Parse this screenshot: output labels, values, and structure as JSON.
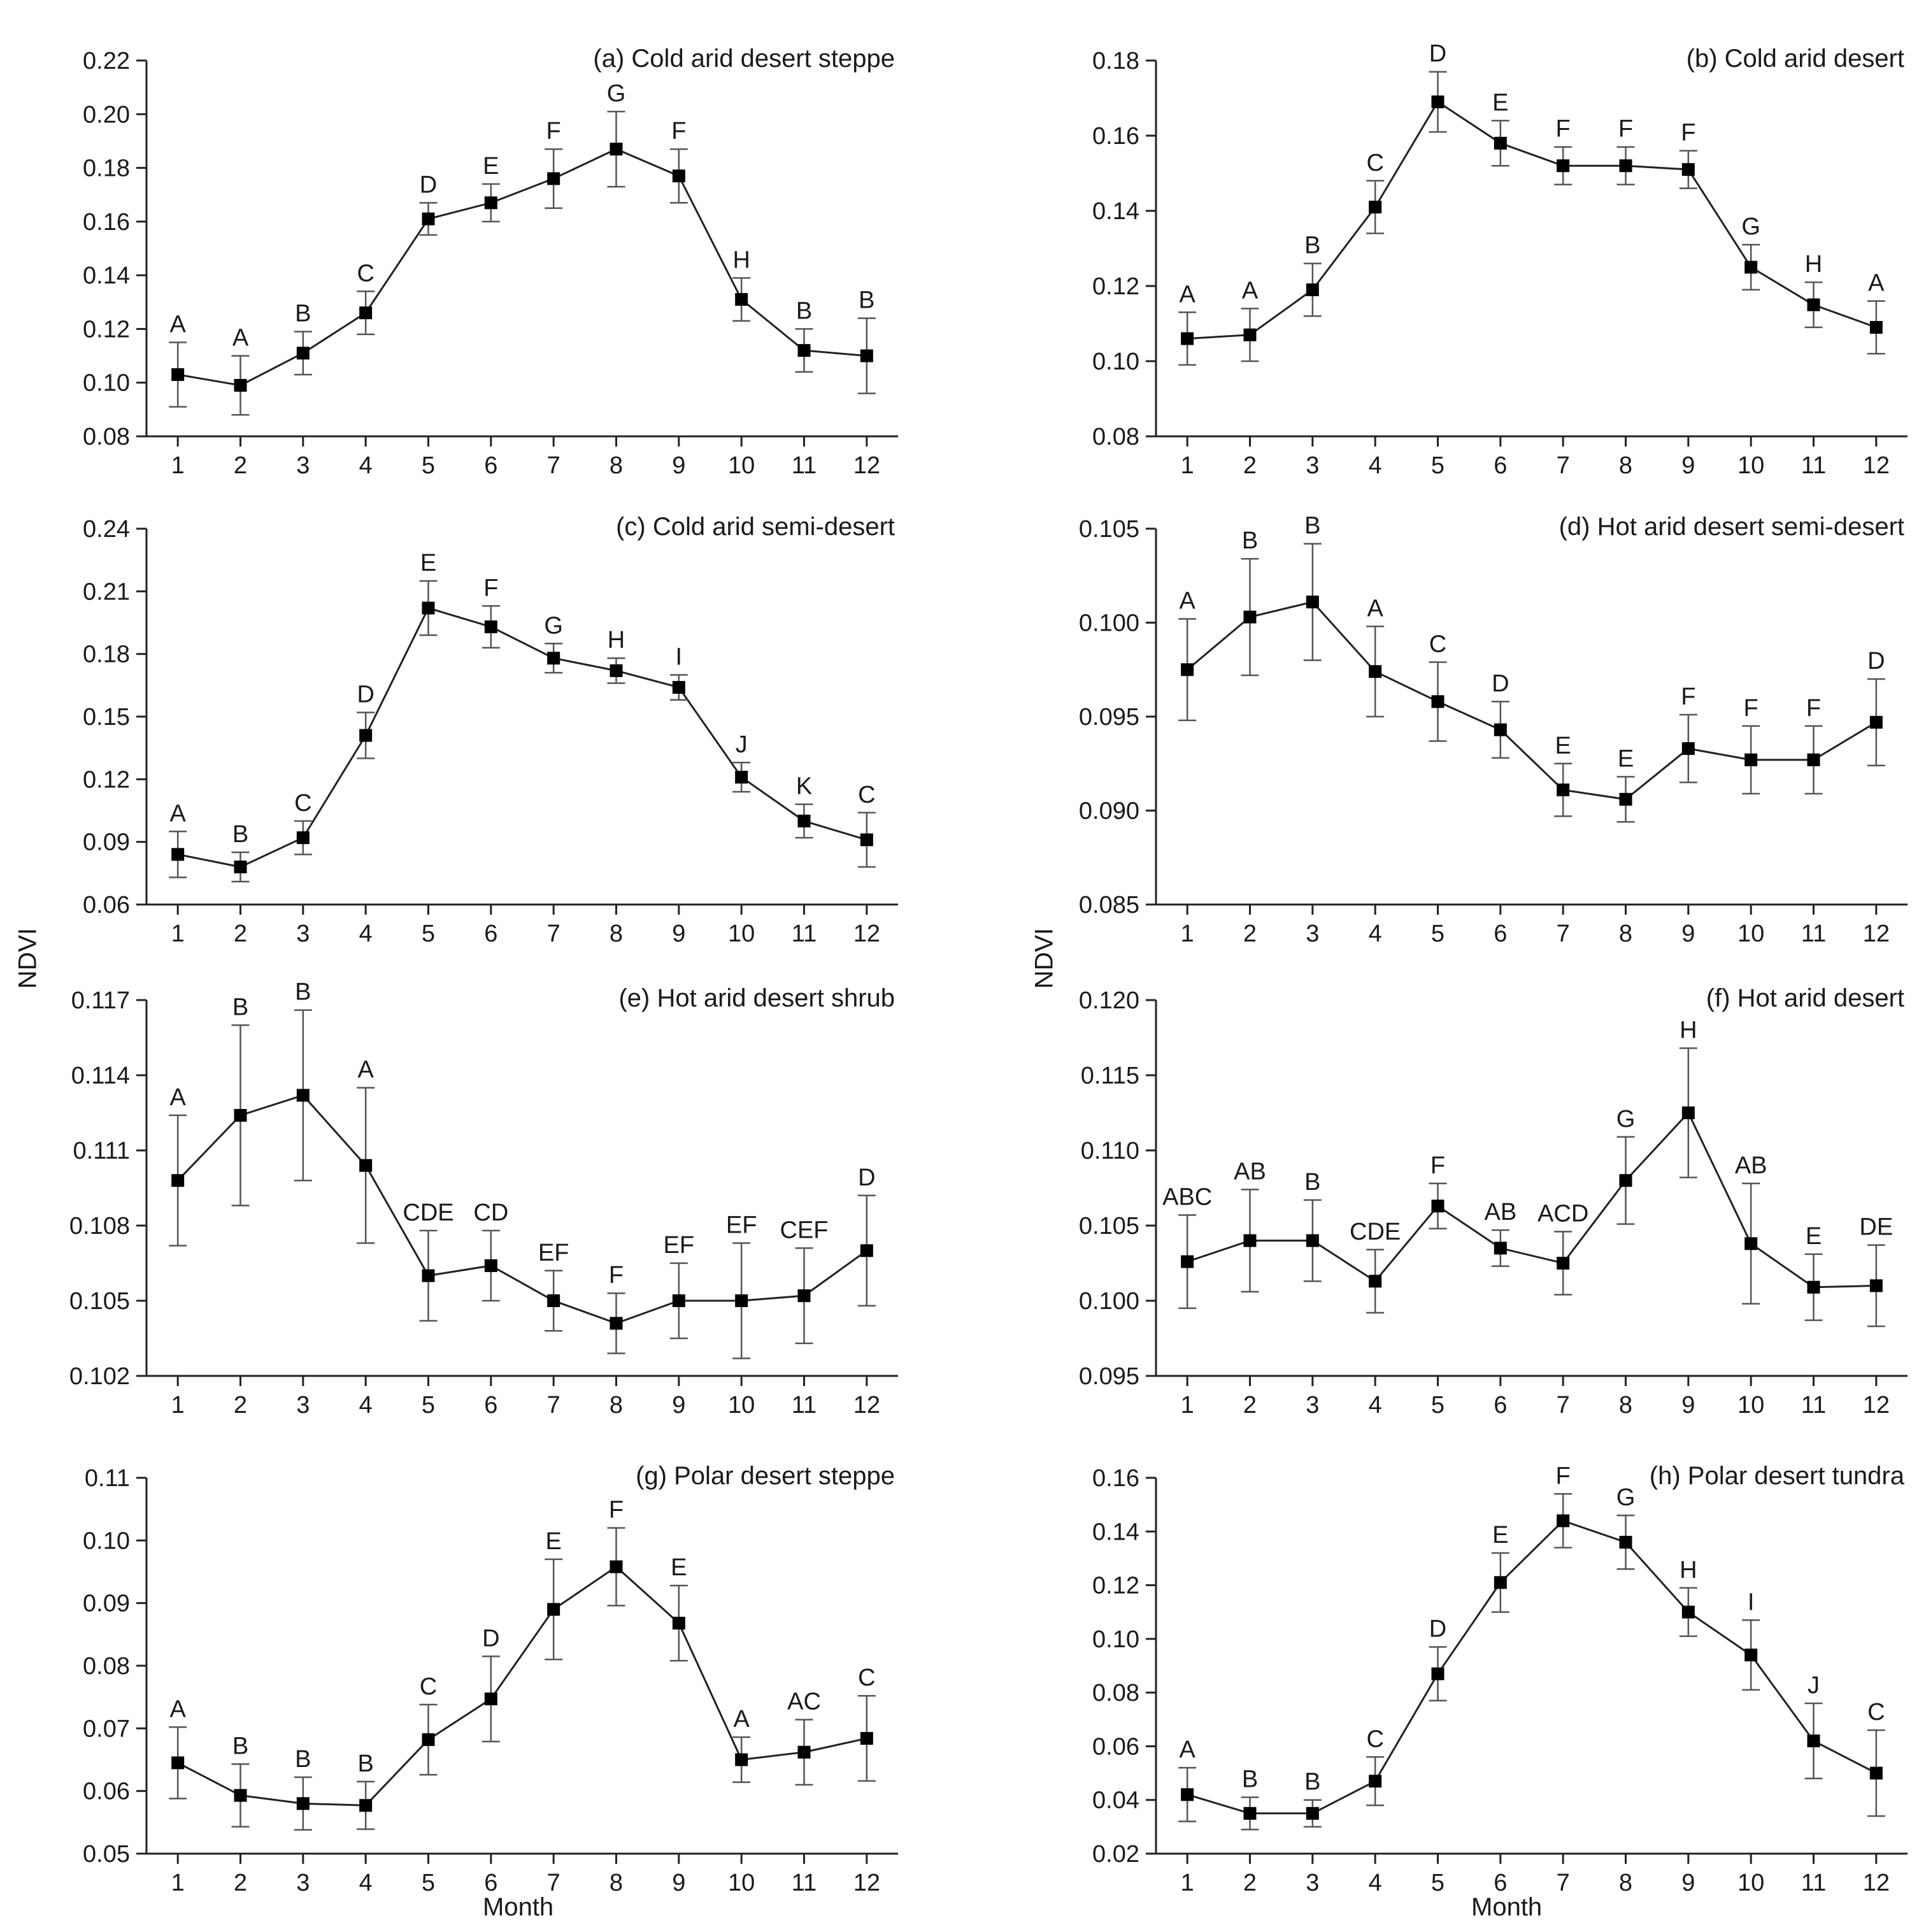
{
  "figure": {
    "ylabel_left": "NDVI",
    "ylabel_right": "NDVI",
    "xlabel_left": "Month",
    "xlabel_right": "Month"
  },
  "chart_data": [
    {
      "type": "line",
      "title": "(a) Cold arid desert steppe",
      "xlabel": "Month",
      "ylabel": "NDVI",
      "x": [
        1,
        2,
        3,
        4,
        5,
        6,
        7,
        8,
        9,
        10,
        11,
        12
      ],
      "ylim": [
        0.08,
        0.22
      ],
      "yticks": [
        "0.08",
        "0.10",
        "0.12",
        "0.14",
        "0.16",
        "0.18",
        "0.20",
        "0.22"
      ],
      "values": [
        0.103,
        0.099,
        0.111,
        0.126,
        0.161,
        0.167,
        0.176,
        0.187,
        0.177,
        0.131,
        0.112,
        0.11
      ],
      "errors": [
        0.012,
        0.011,
        0.008,
        0.008,
        0.006,
        0.007,
        0.011,
        0.014,
        0.01,
        0.008,
        0.008,
        0.014
      ],
      "letters": [
        "A",
        "A",
        "B",
        "C",
        "D",
        "E",
        "F",
        "G",
        "F",
        "H",
        "B",
        "B"
      ]
    },
    {
      "type": "line",
      "title": "(b) Cold arid desert",
      "xlabel": "Month",
      "ylabel": "NDVI",
      "x": [
        1,
        2,
        3,
        4,
        5,
        6,
        7,
        8,
        9,
        10,
        11,
        12
      ],
      "ylim": [
        0.08,
        0.18
      ],
      "yticks": [
        "0.08",
        "0.10",
        "0.12",
        "0.14",
        "0.16",
        "0.18"
      ],
      "values": [
        0.106,
        0.107,
        0.119,
        0.141,
        0.169,
        0.158,
        0.152,
        0.152,
        0.151,
        0.125,
        0.115,
        0.109
      ],
      "errors": [
        0.007,
        0.007,
        0.007,
        0.007,
        0.008,
        0.006,
        0.005,
        0.005,
        0.005,
        0.006,
        0.006,
        0.007
      ],
      "letters": [
        "A",
        "A",
        "B",
        "C",
        "D",
        "E",
        "F",
        "F",
        "F",
        "G",
        "H",
        "A"
      ]
    },
    {
      "type": "line",
      "title": "(c) Cold arid semi-desert",
      "xlabel": "Month",
      "ylabel": "NDVI",
      "x": [
        1,
        2,
        3,
        4,
        5,
        6,
        7,
        8,
        9,
        10,
        11,
        12
      ],
      "ylim": [
        0.06,
        0.24
      ],
      "yticks": [
        "0.06",
        "0.09",
        "0.12",
        "0.15",
        "0.18",
        "0.21",
        "0.24"
      ],
      "values": [
        0.084,
        0.078,
        0.092,
        0.141,
        0.202,
        0.193,
        0.178,
        0.172,
        0.164,
        0.121,
        0.1,
        0.091
      ],
      "errors": [
        0.011,
        0.007,
        0.008,
        0.011,
        0.013,
        0.01,
        0.007,
        0.006,
        0.006,
        0.007,
        0.008,
        0.013
      ],
      "letters": [
        "A",
        "B",
        "C",
        "D",
        "E",
        "F",
        "G",
        "H",
        "I",
        "J",
        "K",
        "C"
      ]
    },
    {
      "type": "line",
      "title": "(d) Hot arid desert semi-desert",
      "xlabel": "Month",
      "ylabel": "NDVI",
      "x": [
        1,
        2,
        3,
        4,
        5,
        6,
        7,
        8,
        9,
        10,
        11,
        12
      ],
      "ylim": [
        0.085,
        0.105
      ],
      "yticks": [
        "0.085",
        "0.090",
        "0.095",
        "0.100",
        "0.105"
      ],
      "values": [
        0.0975,
        0.1003,
        0.1011,
        0.0974,
        0.0958,
        0.0943,
        0.0911,
        0.0906,
        0.0933,
        0.0927,
        0.0927,
        0.0947
      ],
      "errors": [
        0.0027,
        0.0031,
        0.0031,
        0.0024,
        0.0021,
        0.0015,
        0.0014,
        0.0012,
        0.0018,
        0.0018,
        0.0018,
        0.0023
      ],
      "letters": [
        "A",
        "B",
        "B",
        "A",
        "C",
        "D",
        "E",
        "E",
        "F",
        "F",
        "F",
        "D"
      ]
    },
    {
      "type": "line",
      "title": "(e) Hot arid desert shrub",
      "xlabel": "Month",
      "ylabel": "NDVI",
      "x": [
        1,
        2,
        3,
        4,
        5,
        6,
        7,
        8,
        9,
        10,
        11,
        12
      ],
      "ylim": [
        0.102,
        0.117
      ],
      "yticks": [
        "0.102",
        "0.105",
        "0.108",
        "0.111",
        "0.114",
        "0.117"
      ],
      "values": [
        0.1098,
        0.1124,
        0.1132,
        0.1104,
        0.106,
        0.1064,
        0.105,
        0.1041,
        0.105,
        0.105,
        0.1052,
        0.107
      ],
      "errors": [
        0.0026,
        0.0036,
        0.0034,
        0.0031,
        0.0018,
        0.0014,
        0.0012,
        0.0012,
        0.0015,
        0.0023,
        0.0019,
        0.0022
      ],
      "letters": [
        "A",
        "B",
        "B",
        "A",
        "CDE",
        "CD",
        "EF",
        "F",
        "EF",
        "EF",
        "CEF",
        "D"
      ]
    },
    {
      "type": "line",
      "title": "(f) Hot arid desert",
      "xlabel": "Month",
      "ylabel": "NDVI",
      "x": [
        1,
        2,
        3,
        4,
        5,
        6,
        7,
        8,
        9,
        10,
        11,
        12
      ],
      "ylim": [
        0.095,
        0.12
      ],
      "yticks": [
        "0.095",
        "0.100",
        "0.105",
        "0.110",
        "0.115",
        "0.120"
      ],
      "values": [
        0.1026,
        0.104,
        0.104,
        0.1013,
        0.1063,
        0.1035,
        0.1025,
        0.108,
        0.1125,
        0.1038,
        0.1009,
        0.101
      ],
      "errors": [
        0.0031,
        0.0034,
        0.0027,
        0.0021,
        0.0015,
        0.0012,
        0.0021,
        0.0029,
        0.0043,
        0.004,
        0.0022,
        0.0027
      ],
      "letters": [
        "ABC",
        "AB",
        "B",
        "CDE",
        "F",
        "AB",
        "ACD",
        "G",
        "H",
        "AB",
        "E",
        "DE"
      ]
    },
    {
      "type": "line",
      "title": "(g) Polar desert steppe",
      "xlabel": "Month",
      "ylabel": "NDVI",
      "x": [
        1,
        2,
        3,
        4,
        5,
        6,
        7,
        8,
        9,
        10,
        11,
        12
      ],
      "ylim": [
        0.05,
        0.11
      ],
      "yticks": [
        "0.05",
        "0.06",
        "0.07",
        "0.08",
        "0.09",
        "0.10",
        "0.11"
      ],
      "values": [
        0.0645,
        0.0593,
        0.058,
        0.0577,
        0.0682,
        0.0747,
        0.089,
        0.0958,
        0.0868,
        0.065,
        0.0662,
        0.0684
      ],
      "errors": [
        0.0057,
        0.005,
        0.0042,
        0.0038,
        0.0056,
        0.0068,
        0.008,
        0.0062,
        0.006,
        0.0036,
        0.0052,
        0.0068
      ],
      "letters": [
        "A",
        "B",
        "B",
        "B",
        "C",
        "D",
        "E",
        "F",
        "E",
        "A",
        "AC",
        "C"
      ]
    },
    {
      "type": "line",
      "title": "(h) Polar desert tundra",
      "xlabel": "Month",
      "ylabel": "NDVI",
      "x": [
        1,
        2,
        3,
        4,
        5,
        6,
        7,
        8,
        9,
        10,
        11,
        12
      ],
      "ylim": [
        0.02,
        0.16
      ],
      "yticks": [
        "0.02",
        "0.04",
        "0.06",
        "0.08",
        "0.10",
        "0.12",
        "0.14",
        "0.16"
      ],
      "values": [
        0.042,
        0.035,
        0.035,
        0.047,
        0.087,
        0.121,
        0.144,
        0.136,
        0.11,
        0.094,
        0.062,
        0.05
      ],
      "errors": [
        0.01,
        0.006,
        0.005,
        0.009,
        0.01,
        0.011,
        0.01,
        0.01,
        0.009,
        0.013,
        0.014,
        0.016
      ],
      "letters": [
        "A",
        "B",
        "B",
        "C",
        "D",
        "E",
        "F",
        "G",
        "H",
        "I",
        "J",
        "C"
      ]
    }
  ]
}
